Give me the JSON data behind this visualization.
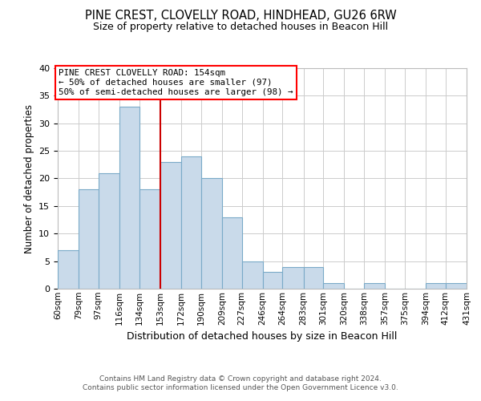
{
  "title": "PINE CREST, CLOVELLY ROAD, HINDHEAD, GU26 6RW",
  "subtitle": "Size of property relative to detached houses in Beacon Hill",
  "xlabel": "Distribution of detached houses by size in Beacon Hill",
  "ylabel": "Number of detached properties",
  "bin_edges": [
    60,
    79,
    97,
    116,
    134,
    153,
    172,
    190,
    209,
    227,
    246,
    264,
    283,
    301,
    320,
    338,
    357,
    375,
    394,
    412,
    431
  ],
  "counts": [
    7,
    18,
    21,
    33,
    18,
    23,
    24,
    20,
    13,
    5,
    3,
    4,
    4,
    1,
    0,
    1,
    0,
    0,
    1,
    1
  ],
  "bar_facecolor": "#c9daea",
  "bar_edgecolor": "#7aaac8",
  "property_line_x": 153,
  "property_line_color": "#cc0000",
  "ylim": [
    0,
    40
  ],
  "yticks": [
    0,
    5,
    10,
    15,
    20,
    25,
    30,
    35,
    40
  ],
  "tick_labels": [
    "60sqm",
    "79sqm",
    "97sqm",
    "116sqm",
    "134sqm",
    "153sqm",
    "172sqm",
    "190sqm",
    "209sqm",
    "227sqm",
    "246sqm",
    "264sqm",
    "283sqm",
    "301sqm",
    "320sqm",
    "338sqm",
    "357sqm",
    "375sqm",
    "394sqm",
    "412sqm",
    "431sqm"
  ],
  "annotation_title": "PINE CREST CLOVELLY ROAD: 154sqm",
  "annotation_line1": "← 50% of detached houses are smaller (97)",
  "annotation_line2": "50% of semi-detached houses are larger (98) →",
  "footer_line1": "Contains HM Land Registry data © Crown copyright and database right 2024.",
  "footer_line2": "Contains public sector information licensed under the Open Government Licence v3.0.",
  "background_color": "#ffffff",
  "grid_color": "#cccccc"
}
